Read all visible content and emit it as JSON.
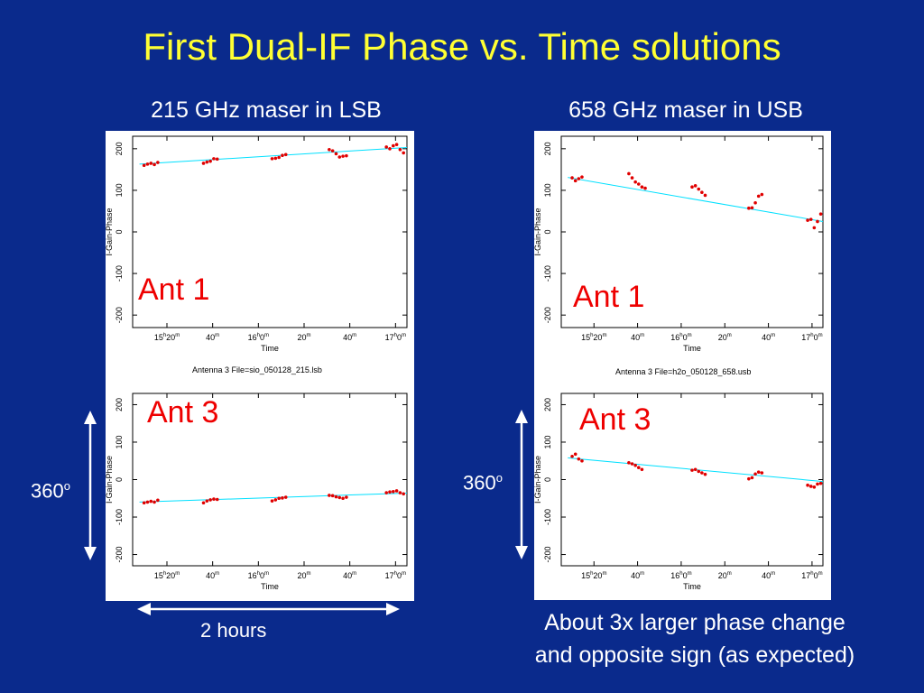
{
  "title": "First Dual-IF Phase vs. Time solutions",
  "left_heading": "215 GHz maser in LSB",
  "right_heading": "658 GHz maser in USB",
  "left_caption": "Antenna 3   File=sio_050128_215.lsb",
  "right_caption": "Antenna 3   File=h2o_050128_658.usb",
  "ant1_label": "Ant 1",
  "ant3_label": "Ant 3",
  "range_label_base": "360",
  "range_label_sup": "o",
  "time_span_label": "2 hours",
  "note_line1": "About 3x larger phase change",
  "note_line2": "and opposite sign (as expected)",
  "colors": {
    "background": "#0a2a8c",
    "title": "#ffff33",
    "points": "#e00000",
    "fit": "#00e0ff"
  },
  "chart_data": [
    {
      "type": "scatter",
      "title": "",
      "xlabel": "Time",
      "ylabel": "I-Gain-Phase",
      "xlim": [
        0,
        120
      ],
      "ylim": [
        -230,
        230
      ],
      "yticks": [
        -200,
        -100,
        0,
        100,
        200
      ],
      "xticks": [
        {
          "v": 15,
          "h": "15",
          "m": "20"
        },
        {
          "v": 35,
          "h": "",
          "m": "40"
        },
        {
          "v": 55,
          "h": "16",
          "m": "0"
        },
        {
          "v": 75,
          "h": "",
          "m": "20"
        },
        {
          "v": 95,
          "h": "",
          "m": "40"
        },
        {
          "v": 115,
          "h": "17",
          "m": "0"
        }
      ],
      "series": [
        {
          "x": [
            5,
            6.5,
            8,
            9.5,
            11,
            31,
            32.5,
            34,
            35.5,
            37,
            61,
            62.5,
            64,
            65.5,
            67,
            86,
            87.5,
            89,
            90.5,
            92,
            93.5,
            111,
            112.5,
            114,
            115.5,
            117,
            118.5
          ],
          "y": [
            160,
            163,
            165,
            162,
            167,
            165,
            168,
            170,
            176,
            175,
            176,
            177,
            179,
            184,
            186,
            198,
            195,
            188,
            180,
            182,
            183,
            204,
            200,
            207,
            210,
            198,
            190
          ]
        }
      ],
      "fit": {
        "x": [
          3,
          120
        ],
        "y": [
          163,
          203
        ]
      }
    },
    {
      "type": "scatter",
      "title": "",
      "xlabel": "Time",
      "ylabel": "I-Gain-Phase",
      "xlim": [
        0,
        120
      ],
      "ylim": [
        -230,
        230
      ],
      "yticks": [
        -200,
        -100,
        0,
        100,
        200
      ],
      "xticks": [
        {
          "v": 15,
          "h": "15",
          "m": "20"
        },
        {
          "v": 35,
          "h": "",
          "m": "40"
        },
        {
          "v": 55,
          "h": "16",
          "m": "0"
        },
        {
          "v": 75,
          "h": "",
          "m": "20"
        },
        {
          "v": 95,
          "h": "",
          "m": "40"
        },
        {
          "v": 115,
          "h": "17",
          "m": "0"
        }
      ],
      "series": [
        {
          "x": [
            5,
            6.5,
            8,
            9.5,
            11,
            31,
            32.5,
            34,
            35.5,
            37,
            61,
            62.5,
            64,
            65.5,
            67,
            86,
            87.5,
            89,
            90.5,
            92,
            93.5,
            111,
            112.5,
            114,
            115.5,
            117,
            118.5
          ],
          "y": [
            -62,
            -60,
            -58,
            -60,
            -55,
            -62,
            -57,
            -54,
            -52,
            -53,
            -57,
            -54,
            -50,
            -49,
            -47,
            -42,
            -43,
            -46,
            -48,
            -50,
            -47,
            -35,
            -33,
            -32,
            -30,
            -35,
            -38
          ]
        }
      ],
      "fit": {
        "x": [
          3,
          120
        ],
        "y": [
          -60,
          -36
        ]
      }
    },
    {
      "type": "scatter",
      "title": "",
      "xlabel": "Time",
      "ylabel": "I-Gain-Phase",
      "xlim": [
        0,
        120
      ],
      "ylim": [
        -230,
        230
      ],
      "yticks": [
        -200,
        -100,
        0,
        100,
        200
      ],
      "xticks": [
        {
          "v": 15,
          "h": "15",
          "m": "20"
        },
        {
          "v": 35,
          "h": "",
          "m": "40"
        },
        {
          "v": 55,
          "h": "16",
          "m": "0"
        },
        {
          "v": 75,
          "h": "",
          "m": "20"
        },
        {
          "v": 95,
          "h": "",
          "m": "40"
        },
        {
          "v": 115,
          "h": "17",
          "m": "0"
        }
      ],
      "series": [
        {
          "x": [
            5,
            6.5,
            8,
            9.5,
            31,
            32.5,
            34,
            35.5,
            37,
            38.5,
            60,
            61.5,
            63,
            64.5,
            66,
            86,
            87.5,
            89,
            90.5,
            92,
            113,
            114.5,
            116,
            117.5,
            119
          ],
          "y": [
            130,
            123,
            128,
            132,
            140,
            130,
            120,
            115,
            108,
            105,
            108,
            111,
            103,
            95,
            88,
            57,
            58,
            70,
            86,
            90,
            28,
            30,
            10,
            25,
            43
          ]
        }
      ],
      "fit": {
        "x": [
          3,
          120
        ],
        "y": [
          131,
          25
        ]
      }
    },
    {
      "type": "scatter",
      "title": "",
      "xlabel": "Time",
      "ylabel": "I-Gain-Phase",
      "xlim": [
        0,
        120
      ],
      "ylim": [
        -230,
        230
      ],
      "yticks": [
        -200,
        -100,
        0,
        100,
        200
      ],
      "xticks": [
        {
          "v": 15,
          "h": "15",
          "m": "20"
        },
        {
          "v": 35,
          "h": "",
          "m": "40"
        },
        {
          "v": 55,
          "h": "16",
          "m": "0"
        },
        {
          "v": 75,
          "h": "",
          "m": "20"
        },
        {
          "v": 95,
          "h": "",
          "m": "40"
        },
        {
          "v": 115,
          "h": "17",
          "m": "0"
        }
      ],
      "series": [
        {
          "x": [
            5,
            6.5,
            8,
            9.5,
            31,
            32.5,
            34,
            35.5,
            37,
            60,
            61.5,
            63,
            64.5,
            66,
            86,
            87.5,
            89,
            90.5,
            92,
            113,
            114.5,
            116,
            117.5,
            119
          ],
          "y": [
            62,
            68,
            55,
            50,
            45,
            42,
            38,
            32,
            27,
            25,
            27,
            22,
            18,
            14,
            2,
            5,
            15,
            20,
            18,
            -15,
            -18,
            -20,
            -12,
            -10
          ]
        }
      ],
      "fit": {
        "x": [
          3,
          120
        ],
        "y": [
          58,
          -5
        ]
      }
    }
  ]
}
